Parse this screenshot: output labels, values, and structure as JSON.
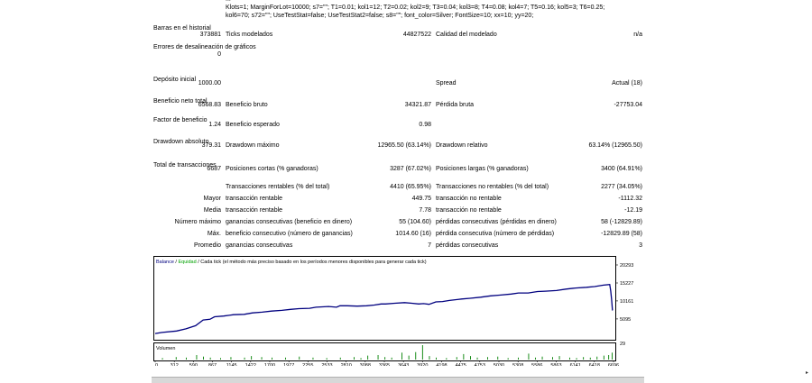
{
  "params": {
    "line0": "...",
    "line1": "Klots=1; MarginForLot=10000; s7=\"\"; T1=0.01; kol1=12; T2=0.02; kol2=9; T3=0.04; kol3=8; T4=0.08; kol4=7; T5=0.16; kol5=3; T6=0.25;",
    "line2": "kol6=70; s72=\"\"; UseTestStat=false; UseTestStat2=false; s8=\"\"; font_color=Silver; FontSize=10; xx=10; yy=20;"
  },
  "stats": {
    "bars": {
      "label": "Barras en el historial",
      "value": "373881",
      "l2": "Ticks modelados",
      "v2": "44827522",
      "l3": "Calidad del modelado",
      "v3": "n/a"
    },
    "errors": {
      "label": "Errores de desalineación de gráficos",
      "value": "0"
    },
    "deposit": {
      "label": "Depósito inicial",
      "value": "1000.00",
      "l3": "Spread",
      "v3": "Actual (18)"
    },
    "net": {
      "label": "Beneficio neto total",
      "value": "6568.83",
      "l2": "Beneficio bruto",
      "v2": "34321.87",
      "l3": "Pérdida bruta",
      "v3": "-27753.04"
    },
    "pf": {
      "label": "Factor de beneficio",
      "value": "1.24",
      "l2": "Beneficio esperado",
      "v2": "0.98"
    },
    "dd": {
      "label": "Drawdown absoluto",
      "value": "379.31",
      "l2": "Drawdown máximo",
      "v2": "12965.50 (63.14%)",
      "l3": "Drawdown relativo",
      "v3": "63.14% (12965.50)"
    },
    "total": {
      "label": "Total de transacciones",
      "value": "6687",
      "l2": "Posiciones cortas (% ganadoras)",
      "v2": "3287 (67.02%)",
      "l3": "Posiciones largas (% ganadoras)",
      "v3": "3400 (64.91%)"
    },
    "profitable": {
      "l2": "Transacciones rentables (% del total)",
      "v2": "4410 (65.95%)",
      "l3": "Transacciones no rentables (% del total)",
      "v3": "2277 (34.05%)"
    },
    "largest": {
      "label": "Mayor",
      "l2": "transacción rentable",
      "v2": "449.75",
      "l3": "transacción no rentable",
      "v3": "-1112.32"
    },
    "average": {
      "label": "Media",
      "l2": "transacción rentable",
      "v2": "7.78",
      "l3": "transacción no rentable",
      "v3": "-12.19"
    },
    "maxcons": {
      "label": "Número máximo",
      "l2": "ganancias consecutivas (beneficio en dinero)",
      "v2": "55 (104.60)",
      "l3": "pérdidas consecutivas (pérdidas en dinero)",
      "v3": "58 (-12829.89)"
    },
    "maxal": {
      "label": "Máx.",
      "l2": "beneficio consecutivo (número de ganancias)",
      "v2": "1014.60 (16)",
      "l3": "pérdida consecutiva (número de pérdidas)",
      "v3": "-12829.89 (58)"
    },
    "avgcons": {
      "label": "Promedio",
      "l2": "ganancias consecutivas",
      "v2": "7",
      "l3": "pérdidas consecutivas",
      "v3": "3"
    }
  },
  "chart": {
    "legend_balance": "Balance",
    "legend_sep": " / ",
    "legend_equity": "Equidad",
    "legend_rest": " / Cada tick (el método más preciso basado en los períodos menores disponibles para generar cada tick)",
    "volume_label": "Volumen",
    "balance_color": "#00007f",
    "equity_color": "#00a000",
    "volume_color": "#008000"
  },
  "chart_data": {
    "type": "line",
    "y_ticks": [
      "20293",
      "15227",
      "10161",
      "5095"
    ],
    "volume_tick": "29",
    "x_ticks": [
      "0",
      "312",
      "590",
      "867",
      "1145",
      "1422",
      "1700",
      "1977",
      "2255",
      "2533",
      "2810",
      "3088",
      "3365",
      "3643",
      "3920",
      "4198",
      "4475",
      "4753",
      "5030",
      "5308",
      "5586",
      "5863",
      "6141",
      "6418",
      "6696"
    ],
    "series": [
      {
        "values": [
          [
            0,
            1000
          ],
          [
            100,
            1300
          ],
          [
            312,
            1700
          ],
          [
            450,
            2300
          ],
          [
            590,
            3200
          ],
          [
            700,
            4800
          ],
          [
            800,
            5000
          ],
          [
            867,
            5700
          ],
          [
            1000,
            5900
          ],
          [
            1145,
            6300
          ],
          [
            1300,
            6400
          ],
          [
            1422,
            6800
          ],
          [
            1560,
            7000
          ],
          [
            1700,
            7300
          ],
          [
            1850,
            7500
          ],
          [
            1977,
            7800
          ],
          [
            2100,
            8000
          ],
          [
            2255,
            8100
          ],
          [
            2350,
            8400
          ],
          [
            2533,
            8600
          ],
          [
            2650,
            8400
          ],
          [
            2700,
            8800
          ],
          [
            2810,
            8800
          ],
          [
            2950,
            8700
          ],
          [
            3088,
            8800
          ],
          [
            3200,
            9000
          ],
          [
            3300,
            9300
          ],
          [
            3365,
            9300
          ],
          [
            3500,
            9500
          ],
          [
            3643,
            9700
          ],
          [
            3750,
            9500
          ],
          [
            3850,
            9300
          ],
          [
            3920,
            9400
          ],
          [
            4000,
            9200
          ],
          [
            4100,
            9900
          ],
          [
            4198,
            10000
          ],
          [
            4300,
            10300
          ],
          [
            4475,
            10700
          ],
          [
            4600,
            10900
          ],
          [
            4753,
            11200
          ],
          [
            4900,
            11600
          ],
          [
            5030,
            11800
          ],
          [
            5200,
            12100
          ],
          [
            5308,
            12400
          ],
          [
            5450,
            12400
          ],
          [
            5586,
            12800
          ],
          [
            5700,
            12900
          ],
          [
            5863,
            13100
          ],
          [
            6000,
            13500
          ],
          [
            6141,
            13800
          ],
          [
            6300,
            14000
          ],
          [
            6418,
            14200
          ],
          [
            6550,
            14600
          ],
          [
            6640,
            14800
          ],
          [
            6655,
            13000
          ],
          [
            6668,
            10500
          ],
          [
            6680,
            7600
          ],
          [
            6687,
            7569
          ]
        ]
      }
    ],
    "volume": [
      [
        100,
        3
      ],
      [
        300,
        5
      ],
      [
        450,
        4
      ],
      [
        600,
        9
      ],
      [
        700,
        6
      ],
      [
        800,
        4
      ],
      [
        950,
        3
      ],
      [
        1100,
        5
      ],
      [
        1300,
        4
      ],
      [
        1400,
        7
      ],
      [
        1550,
        5
      ],
      [
        1700,
        4
      ],
      [
        1900,
        4
      ],
      [
        2100,
        6
      ],
      [
        2300,
        4
      ],
      [
        2500,
        3
      ],
      [
        2700,
        4
      ],
      [
        2900,
        5
      ],
      [
        3000,
        3
      ],
      [
        3100,
        8
      ],
      [
        3250,
        9
      ],
      [
        3350,
        5
      ],
      [
        3450,
        4
      ],
      [
        3600,
        14
      ],
      [
        3700,
        8
      ],
      [
        3800,
        15
      ],
      [
        3900,
        29
      ],
      [
        4000,
        7
      ],
      [
        4100,
        4
      ],
      [
        4250,
        3
      ],
      [
        4400,
        5
      ],
      [
        4500,
        11
      ],
      [
        4600,
        7
      ],
      [
        4700,
        4
      ],
      [
        4850,
        5
      ],
      [
        5000,
        6
      ],
      [
        5150,
        3
      ],
      [
        5300,
        4
      ],
      [
        5450,
        12
      ],
      [
        5550,
        4
      ],
      [
        5650,
        6
      ],
      [
        5800,
        5
      ],
      [
        5900,
        7
      ],
      [
        6050,
        4
      ],
      [
        6150,
        3
      ],
      [
        6250,
        5
      ],
      [
        6350,
        4
      ],
      [
        6450,
        6
      ],
      [
        6550,
        8
      ],
      [
        6620,
        9
      ],
      [
        6670,
        14
      ]
    ],
    "xlim": [
      0,
      6696
    ],
    "ylim": [
      0,
      20293
    ]
  }
}
